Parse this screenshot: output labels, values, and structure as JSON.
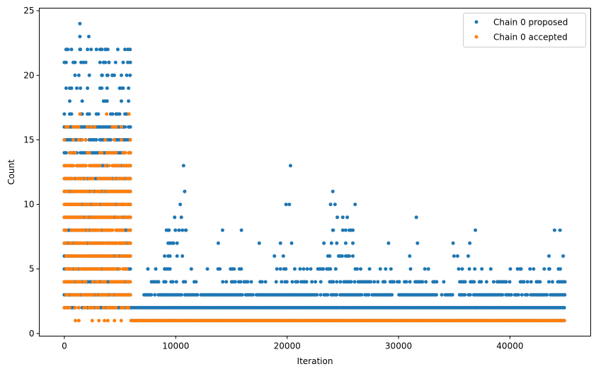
{
  "chart_data": {
    "type": "scatter",
    "title": "",
    "xlabel": "Iteration",
    "ylabel": "Count",
    "xlim": [
      -2250,
      47250
    ],
    "ylim": [
      -0.2,
      25.2
    ],
    "xticks": [
      0,
      10000,
      20000,
      30000,
      40000
    ],
    "yticks": [
      0,
      5,
      10,
      15,
      20,
      25
    ],
    "legend_position": "upper-right",
    "grid": false,
    "colors": {
      "proposed": "#1f77b4",
      "accepted": "#ff7f0e"
    },
    "series": [
      {
        "name": "Chain 0 proposed",
        "color": "#1f77b4",
        "bands": [
          [
            0,
            6000,
            2,
            16,
            0.9
          ],
          [
            6000,
            45000,
            1,
            2,
            1.0
          ],
          [
            7000,
            45000,
            3,
            3,
            0.85
          ],
          [
            7500,
            45000,
            4,
            4,
            0.55
          ],
          [
            9000,
            45000,
            5,
            5,
            0.25
          ],
          [
            9000,
            11000,
            6,
            8,
            0.35
          ],
          [
            13500,
            14500,
            6,
            7,
            0.25
          ],
          [
            15500,
            20500,
            6,
            6,
            0.2
          ],
          [
            23500,
            26000,
            6,
            8,
            0.35
          ],
          [
            31000,
            32500,
            6,
            6,
            0.25
          ],
          [
            34500,
            36500,
            6,
            6,
            0.2
          ],
          [
            43500,
            45000,
            6,
            6,
            0.2
          ],
          [
            0,
            6000,
            17,
            22,
            0.25
          ]
        ],
        "points": [
          [
            1400,
            24
          ],
          [
            1400,
            23
          ],
          [
            2200,
            23
          ],
          [
            1400,
            22
          ],
          [
            3700,
            22
          ],
          [
            3900,
            22
          ],
          [
            5700,
            22
          ],
          [
            5900,
            22
          ],
          [
            1500,
            21
          ],
          [
            1700,
            21
          ],
          [
            4000,
            21
          ],
          [
            4600,
            21
          ],
          [
            5700,
            21
          ],
          [
            1300,
            20
          ],
          [
            3400,
            20
          ],
          [
            3900,
            20
          ],
          [
            4300,
            20
          ],
          [
            5900,
            20
          ],
          [
            10700,
            13
          ],
          [
            20300,
            13
          ],
          [
            10800,
            11
          ],
          [
            24100,
            11
          ],
          [
            10400,
            10
          ],
          [
            19900,
            10
          ],
          [
            20200,
            10
          ],
          [
            23900,
            10
          ],
          [
            24300,
            10
          ],
          [
            26100,
            10
          ],
          [
            9900,
            9
          ],
          [
            10500,
            9
          ],
          [
            24500,
            9
          ],
          [
            25000,
            9
          ],
          [
            25400,
            9
          ],
          [
            31600,
            9
          ],
          [
            9400,
            8
          ],
          [
            10300,
            8
          ],
          [
            10900,
            8
          ],
          [
            14200,
            8
          ],
          [
            15900,
            8
          ],
          [
            24100,
            8
          ],
          [
            25000,
            8
          ],
          [
            36900,
            8
          ],
          [
            44000,
            8
          ],
          [
            44500,
            8
          ],
          [
            17500,
            7
          ],
          [
            19400,
            7
          ],
          [
            20400,
            7
          ],
          [
            23300,
            7
          ],
          [
            29100,
            7
          ],
          [
            31700,
            7
          ],
          [
            34900,
            7
          ],
          [
            36400,
            7
          ],
          [
            7500,
            5
          ],
          [
            8200,
            5
          ],
          [
            40900,
            5
          ],
          [
            43500,
            5
          ]
        ]
      },
      {
        "name": "Chain 0 accepted",
        "color": "#ff7f0e",
        "bands": [
          [
            0,
            6000,
            3,
            13,
            0.85
          ],
          [
            0,
            6000,
            2,
            2,
            0.5
          ],
          [
            6000,
            45000,
            1,
            1,
            1.0
          ],
          [
            0,
            6000,
            14,
            16,
            0.3
          ]
        ],
        "points": [
          [
            1000,
            1
          ],
          [
            1300,
            1
          ],
          [
            2500,
            1
          ],
          [
            3100,
            1
          ],
          [
            3600,
            1
          ],
          [
            3900,
            1
          ],
          [
            4500,
            1
          ],
          [
            5100,
            1
          ],
          [
            1400,
            17
          ],
          [
            3800,
            17
          ],
          [
            5800,
            17
          ]
        ]
      }
    ]
  }
}
